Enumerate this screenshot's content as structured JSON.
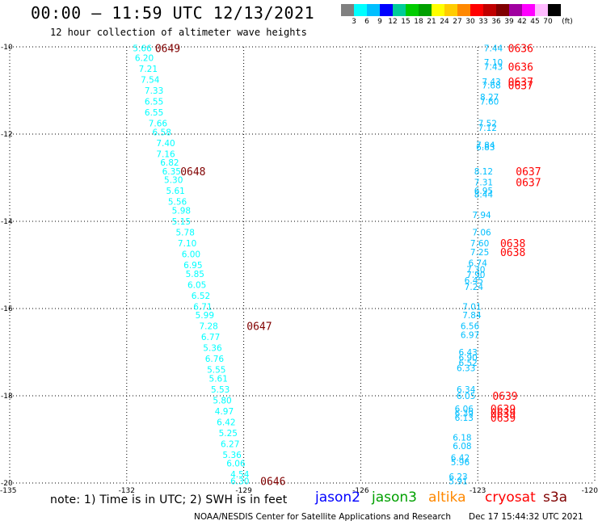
{
  "header": {
    "title": "00:00 – 11:59 UTC 12/13/2021",
    "subtitle": "12 hour collection of altimeter wave heights"
  },
  "color_scale": {
    "unit": "(ft)",
    "bins": [
      {
        "label": "3",
        "color": "#808080"
      },
      {
        "label": "6",
        "color": "#00ffff"
      },
      {
        "label": "9",
        "color": "#00bfff"
      },
      {
        "label": "12",
        "color": "#0000ff"
      },
      {
        "label": "15",
        "color": "#00cc99"
      },
      {
        "label": "18",
        "color": "#00cc00"
      },
      {
        "label": "21",
        "color": "#00a000"
      },
      {
        "label": "24",
        "color": "#ffff00"
      },
      {
        "label": "27",
        "color": "#ffcc00"
      },
      {
        "label": "30",
        "color": "#ff8800"
      },
      {
        "label": "33",
        "color": "#ff0000"
      },
      {
        "label": "36",
        "color": "#c00000"
      },
      {
        "label": "39",
        "color": "#800000"
      },
      {
        "label": "42",
        "color": "#a000a0"
      },
      {
        "label": "45",
        "color": "#ff00ff"
      },
      {
        "label": "70",
        "color": "#ffbbff"
      },
      {
        "label": "",
        "color": "#000000"
      }
    ]
  },
  "chart_data": {
    "type": "scatter",
    "x_range": [
      -135,
      -120
    ],
    "y_range": [
      -20,
      -10
    ],
    "x_ticks": [
      {
        "value": -135,
        "label": "-135"
      },
      {
        "value": -132,
        "label": "-132"
      },
      {
        "value": -129,
        "label": "-129"
      },
      {
        "value": -126,
        "label": "-126"
      },
      {
        "value": -123,
        "label": "-123"
      },
      {
        "value": -120,
        "label": "-120"
      }
    ],
    "y_ticks": [
      {
        "value": -10,
        "label": "-10"
      },
      {
        "value": -12,
        "label": "-12"
      },
      {
        "value": -14,
        "label": "-14"
      },
      {
        "value": -16,
        "label": "-16"
      },
      {
        "value": -18,
        "label": "-18"
      },
      {
        "value": -20,
        "label": "-20"
      }
    ],
    "grid": "dotted",
    "tracks": [
      {
        "points": [
          {
            "lon": -131.6,
            "lat": -10.03,
            "swh": "5.66",
            "color": "#00ffff"
          },
          {
            "lon": -131.55,
            "lat": -10.25,
            "swh": "6.20",
            "color": "#00ffff"
          },
          {
            "lon": -131.45,
            "lat": -10.5,
            "swh": "7.21",
            "color": "#00ffff"
          },
          {
            "lon": -131.4,
            "lat": -10.75,
            "swh": "7.54",
            "color": "#00ffff"
          },
          {
            "lon": -131.3,
            "lat": -11.0,
            "swh": "7.33",
            "color": "#00ffff"
          },
          {
            "lon": -131.3,
            "lat": -11.25,
            "swh": "6.55",
            "color": "#00ffff"
          },
          {
            "lon": -131.3,
            "lat": -11.5,
            "swh": "6.55",
            "color": "#00ffff"
          },
          {
            "lon": -131.2,
            "lat": -11.75,
            "swh": "7.66",
            "color": "#00ffff"
          },
          {
            "lon": -131.1,
            "lat": -11.95,
            "swh": "6.58",
            "color": "#00ffff"
          },
          {
            "lon": -131.0,
            "lat": -12.2,
            "swh": "7.40",
            "color": "#00ffff"
          },
          {
            "lon": -131.0,
            "lat": -12.45,
            "swh": "7.16",
            "color": "#00ffff"
          },
          {
            "lon": -130.9,
            "lat": -12.65,
            "swh": "6.82",
            "color": "#00ffff"
          },
          {
            "lon": -130.85,
            "lat": -12.85,
            "swh": "6.35",
            "color": "#00ffff"
          },
          {
            "lon": -130.8,
            "lat": -13.05,
            "swh": "5.30",
            "color": "#00ffff"
          },
          {
            "lon": -130.75,
            "lat": -13.3,
            "swh": "5.61",
            "color": "#00ffff"
          },
          {
            "lon": -130.7,
            "lat": -13.55,
            "swh": "5.56",
            "color": "#00ffff"
          },
          {
            "lon": -130.6,
            "lat": -13.75,
            "swh": "5.98",
            "color": "#00ffff"
          },
          {
            "lon": -130.6,
            "lat": -14.0,
            "swh": "5.15",
            "color": "#00ffff"
          },
          {
            "lon": -130.5,
            "lat": -14.25,
            "swh": "5.78",
            "color": "#00ffff"
          },
          {
            "lon": -130.45,
            "lat": -14.5,
            "swh": "7.10",
            "color": "#00ffff"
          },
          {
            "lon": -130.35,
            "lat": -14.75,
            "swh": "6.00",
            "color": "#00ffff"
          },
          {
            "lon": -130.3,
            "lat": -15.0,
            "swh": "6.95",
            "color": "#00ffff"
          },
          {
            "lon": -130.25,
            "lat": -15.2,
            "swh": "5.85",
            "color": "#00ffff"
          },
          {
            "lon": -130.2,
            "lat": -15.45,
            "swh": "6.05",
            "color": "#00ffff"
          },
          {
            "lon": -130.1,
            "lat": -15.7,
            "swh": "6.52",
            "color": "#00ffff"
          },
          {
            "lon": -130.05,
            "lat": -15.95,
            "swh": "6.71",
            "color": "#00ffff"
          },
          {
            "lon": -130.0,
            "lat": -16.15,
            "swh": "5.99",
            "color": "#00ffff"
          },
          {
            "lon": -129.9,
            "lat": -16.4,
            "swh": "7.28",
            "color": "#00ffff"
          },
          {
            "lon": -129.85,
            "lat": -16.65,
            "swh": "6.77",
            "color": "#00ffff"
          },
          {
            "lon": -129.8,
            "lat": -16.9,
            "swh": "5.36",
            "color": "#00ffff"
          },
          {
            "lon": -129.75,
            "lat": -17.15,
            "swh": "6.76",
            "color": "#00ffff"
          },
          {
            "lon": -129.7,
            "lat": -17.4,
            "swh": "5.55",
            "color": "#00ffff"
          },
          {
            "lon": -129.65,
            "lat": -17.6,
            "swh": "5.61",
            "color": "#00ffff"
          },
          {
            "lon": -129.6,
            "lat": -17.85,
            "swh": "5.53",
            "color": "#00ffff"
          },
          {
            "lon": -129.55,
            "lat": -18.1,
            "swh": "5.80",
            "color": "#00ffff"
          },
          {
            "lon": -129.5,
            "lat": -18.35,
            "swh": "4.97",
            "color": "#00ffff"
          },
          {
            "lon": -129.45,
            "lat": -18.6,
            "swh": "6.42",
            "color": "#00ffff"
          },
          {
            "lon": -129.4,
            "lat": -18.85,
            "swh": "5.25",
            "color": "#00ffff"
          },
          {
            "lon": -129.35,
            "lat": -19.1,
            "swh": "6.27",
            "color": "#00ffff"
          },
          {
            "lon": -129.3,
            "lat": -19.35,
            "swh": "5.36",
            "color": "#00ffff"
          },
          {
            "lon": -129.2,
            "lat": -19.55,
            "swh": "6.06",
            "color": "#00ffff"
          },
          {
            "lon": -129.1,
            "lat": -19.8,
            "swh": "4.54",
            "color": "#00ffff"
          },
          {
            "lon": -129.1,
            "lat": -19.95,
            "swh": "6.30",
            "color": "#00ffff"
          }
        ],
        "time_labels": [
          {
            "lon": -130.95,
            "lat": -10.03,
            "text": "0649",
            "color": "#800000"
          },
          {
            "lon": -130.3,
            "lat": -12.85,
            "text": "0648",
            "color": "#800000"
          },
          {
            "lon": -128.6,
            "lat": -16.4,
            "text": "0647",
            "color": "#800000"
          },
          {
            "lon": -128.25,
            "lat": -19.95,
            "text": "0646",
            "color": "#800000"
          }
        ]
      },
      {
        "points": [
          {
            "lon": -122.6,
            "lat": -10.03,
            "swh": "7.44",
            "color": "#00bfff"
          },
          {
            "lon": -122.6,
            "lat": -10.35,
            "swh": "7.10",
            "color": "#00bfff"
          },
          {
            "lon": -122.6,
            "lat": -10.45,
            "swh": "7.43",
            "color": "#00bfff"
          },
          {
            "lon": -122.65,
            "lat": -10.8,
            "swh": "7.43",
            "color": "#00bfff"
          },
          {
            "lon": -122.65,
            "lat": -10.88,
            "swh": "7.68",
            "color": "#00bfff"
          },
          {
            "lon": -122.7,
            "lat": -11.15,
            "swh": "8.27",
            "color": "#00bfff"
          },
          {
            "lon": -122.7,
            "lat": -11.25,
            "swh": "7.60",
            "color": "#00bfff"
          },
          {
            "lon": -122.75,
            "lat": -11.75,
            "swh": "7.52",
            "color": "#00bfff"
          },
          {
            "lon": -122.75,
            "lat": -11.85,
            "swh": "7.12",
            "color": "#00bfff"
          },
          {
            "lon": -122.8,
            "lat": -12.25,
            "swh": "7.84",
            "color": "#00bfff"
          },
          {
            "lon": -122.8,
            "lat": -12.3,
            "swh": "6.83",
            "color": "#00bfff"
          },
          {
            "lon": -122.85,
            "lat": -12.85,
            "swh": "8.12",
            "color": "#00bfff"
          },
          {
            "lon": -122.85,
            "lat": -13.1,
            "swh": "7.31",
            "color": "#00bfff"
          },
          {
            "lon": -122.85,
            "lat": -13.3,
            "swh": "6.95",
            "color": "#00bfff"
          },
          {
            "lon": -122.85,
            "lat": -13.38,
            "swh": "8.44",
            "color": "#00bfff"
          },
          {
            "lon": -122.9,
            "lat": -13.85,
            "swh": "7.94",
            "color": "#00bfff"
          },
          {
            "lon": -122.9,
            "lat": -14.25,
            "swh": "7.06",
            "color": "#00bfff"
          },
          {
            "lon": -122.95,
            "lat": -14.5,
            "swh": "7.60",
            "color": "#00bfff"
          },
          {
            "lon": -122.95,
            "lat": -14.7,
            "swh": "7.25",
            "color": "#00bfff"
          },
          {
            "lon": -123.0,
            "lat": -14.95,
            "swh": "6.74",
            "color": "#00bfff"
          },
          {
            "lon": -123.05,
            "lat": -15.1,
            "swh": "7.30",
            "color": "#00bfff"
          },
          {
            "lon": -123.05,
            "lat": -15.22,
            "swh": "7.90",
            "color": "#00bfff"
          },
          {
            "lon": -123.1,
            "lat": -15.35,
            "swh": "6.45",
            "color": "#00bfff"
          },
          {
            "lon": -123.1,
            "lat": -15.5,
            "swh": "7.24",
            "color": "#00bfff"
          },
          {
            "lon": -123.15,
            "lat": -15.95,
            "swh": "7.01",
            "color": "#00bfff"
          },
          {
            "lon": -123.15,
            "lat": -16.15,
            "swh": "7.84",
            "color": "#00bfff"
          },
          {
            "lon": -123.2,
            "lat": -16.4,
            "swh": "6.56",
            "color": "#00bfff"
          },
          {
            "lon": -123.2,
            "lat": -16.6,
            "swh": "6.97",
            "color": "#00bfff"
          },
          {
            "lon": -123.25,
            "lat": -17.0,
            "swh": "6.43",
            "color": "#00bfff"
          },
          {
            "lon": -123.25,
            "lat": -17.12,
            "swh": "6.90",
            "color": "#00bfff"
          },
          {
            "lon": -123.25,
            "lat": -17.24,
            "swh": "6.52",
            "color": "#00bfff"
          },
          {
            "lon": -123.3,
            "lat": -17.36,
            "swh": "6.33",
            "color": "#00bfff"
          },
          {
            "lon": -123.3,
            "lat": -17.85,
            "swh": "6.34",
            "color": "#00bfff"
          },
          {
            "lon": -123.3,
            "lat": -18.0,
            "swh": "6.05",
            "color": "#00bfff"
          },
          {
            "lon": -123.35,
            "lat": -18.3,
            "swh": "6.06",
            "color": "#00bfff"
          },
          {
            "lon": -123.35,
            "lat": -18.4,
            "swh": "6.39",
            "color": "#00bfff"
          },
          {
            "lon": -123.35,
            "lat": -18.5,
            "swh": "6.13",
            "color": "#00bfff"
          },
          {
            "lon": -123.4,
            "lat": -18.95,
            "swh": "6.18",
            "color": "#00bfff"
          },
          {
            "lon": -123.4,
            "lat": -19.15,
            "swh": "6.08",
            "color": "#00bfff"
          },
          {
            "lon": -123.45,
            "lat": -19.42,
            "swh": "6.42",
            "color": "#00bfff"
          },
          {
            "lon": -123.45,
            "lat": -19.52,
            "swh": "5.96",
            "color": "#00bfff"
          },
          {
            "lon": -123.5,
            "lat": -19.85,
            "swh": "6.23",
            "color": "#00bfff"
          },
          {
            "lon": -123.5,
            "lat": -19.95,
            "swh": "5.91",
            "color": "#00bfff"
          }
        ],
        "time_labels": [
          {
            "lon": -121.9,
            "lat": -10.03,
            "text": "0636",
            "color": "#ff0000"
          },
          {
            "lon": -121.9,
            "lat": -10.45,
            "text": "0636",
            "color": "#ff0000"
          },
          {
            "lon": -121.9,
            "lat": -10.8,
            "text": "0637",
            "color": "#ff0000"
          },
          {
            "lon": -121.9,
            "lat": -10.88,
            "text": "0637",
            "color": "#ff0000"
          },
          {
            "lon": -121.7,
            "lat": -12.85,
            "text": "0637",
            "color": "#ff0000"
          },
          {
            "lon": -121.7,
            "lat": -13.1,
            "text": "0637",
            "color": "#ff0000"
          },
          {
            "lon": -122.1,
            "lat": -14.5,
            "text": "0638",
            "color": "#ff0000"
          },
          {
            "lon": -122.1,
            "lat": -14.7,
            "text": "0638",
            "color": "#ff0000"
          },
          {
            "lon": -122.3,
            "lat": -18.0,
            "text": "0639",
            "color": "#ff0000"
          },
          {
            "lon": -122.35,
            "lat": -18.3,
            "text": "0639",
            "color": "#ff0000"
          },
          {
            "lon": -122.35,
            "lat": -18.4,
            "text": "0639",
            "color": "#ff0000"
          },
          {
            "lon": -122.35,
            "lat": -18.5,
            "text": "0639",
            "color": "#ff0000"
          }
        ]
      }
    ]
  },
  "footer": {
    "note": "note: 1) Time is in UTC; 2) SWH is in feet",
    "satellites": [
      {
        "name": "jason2",
        "color": "#0000ff"
      },
      {
        "name": "jason3",
        "color": "#00a000"
      },
      {
        "name": "altika",
        "color": "#ff8800"
      },
      {
        "name": "cryosat",
        "color": "#ff0000"
      },
      {
        "name": "s3a",
        "color": "#800000"
      }
    ],
    "credit": "NOAA/NESDIS Center for Satellite Applications and Research",
    "timestamp": "Dec 17 15:44:32 UTC 2021"
  }
}
